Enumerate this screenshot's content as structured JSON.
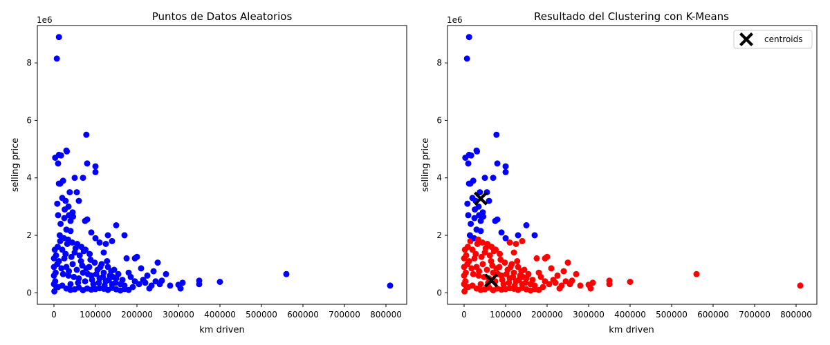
{
  "chart_data": [
    {
      "type": "scatter",
      "title": "Puntos de Datos Aleatorios",
      "xlabel": "km driven",
      "ylabel": "selling price",
      "y_offset_label": "1e6",
      "xlim": [
        -40000,
        850000
      ],
      "ylim": [
        -400000,
        9300000
      ],
      "xticks": [
        0,
        100000,
        200000,
        300000,
        400000,
        500000,
        600000,
        700000,
        800000
      ],
      "xtick_labels": [
        "0",
        "100000",
        "200000",
        "300000",
        "400000",
        "500000",
        "600000",
        "700000",
        "800000"
      ],
      "yticks": [
        0,
        2000000,
        4000000,
        6000000,
        8000000
      ],
      "ytick_labels": [
        "0",
        "2",
        "4",
        "6",
        "8"
      ],
      "series": [
        {
          "name": "points",
          "color": "#0000ff",
          "points": [
            [
              12000,
              8900000
            ],
            [
              7000,
              8150000
            ],
            [
              78000,
              5500000
            ],
            [
              30000,
              4950000
            ],
            [
              31000,
              4920000
            ],
            [
              12000,
              4800000
            ],
            [
              17000,
              4780000
            ],
            [
              3000,
              4700000
            ],
            [
              80000,
              4500000
            ],
            [
              10000,
              4500000
            ],
            [
              100000,
              4400000
            ],
            [
              100000,
              4200000
            ],
            [
              22000,
              3900000
            ],
            [
              12000,
              3800000
            ],
            [
              50000,
              4000000
            ],
            [
              70000,
              4000000
            ],
            [
              15000,
              3800000
            ],
            [
              38000,
              3500000
            ],
            [
              55000,
              3500000
            ],
            [
              20000,
              3300000
            ],
            [
              28000,
              3200000
            ],
            [
              60000,
              3200000
            ],
            [
              8000,
              3100000
            ],
            [
              35000,
              3000000
            ],
            [
              45000,
              2800000
            ],
            [
              10000,
              2700000
            ],
            [
              25000,
              2600000
            ],
            [
              40000,
              2500000
            ],
            [
              80000,
              2550000
            ],
            [
              75000,
              2500000
            ],
            [
              150000,
              2350000
            ],
            [
              30000,
              2200000
            ],
            [
              40000,
              2150000
            ],
            [
              90000,
              2100000
            ],
            [
              100000,
              1900000
            ],
            [
              130000,
              2000000
            ],
            [
              170000,
              2000000
            ],
            [
              110000,
              1750000
            ],
            [
              140000,
              1800000
            ],
            [
              125000,
              1700000
            ],
            [
              120000,
              1400000
            ],
            [
              200000,
              1250000
            ],
            [
              195000,
              1200000
            ],
            [
              175000,
              1200000
            ],
            [
              250000,
              1050000
            ],
            [
              210000,
              850000
            ],
            [
              240000,
              750000
            ],
            [
              270000,
              650000
            ],
            [
              225000,
              600000
            ],
            [
              260000,
              420000
            ],
            [
              280000,
              250000
            ],
            [
              300000,
              280000
            ],
            [
              305000,
              150000
            ],
            [
              310000,
              350000
            ],
            [
              350000,
              420000
            ],
            [
              350000,
              300000
            ],
            [
              400000,
              380000
            ],
            [
              560000,
              650000
            ],
            [
              810000,
              250000
            ],
            [
              150000,
              500000
            ],
            [
              160000,
              300000
            ],
            [
              180000,
              700000
            ],
            [
              190000,
              200000
            ],
            [
              230000,
              150000
            ],
            [
              220000,
              350000
            ],
            [
              2000,
              1500000
            ],
            [
              5000,
              1300000
            ],
            [
              8000,
              1000000
            ],
            [
              4000,
              700000
            ],
            [
              3000,
              400000
            ],
            [
              6000,
              200000
            ],
            [
              9000,
              1600000
            ],
            [
              15000,
              1800000
            ],
            [
              20000,
              1500000
            ],
            [
              25000,
              1200000
            ],
            [
              30000,
              900000
            ],
            [
              35000,
              600000
            ],
            [
              40000,
              300000
            ],
            [
              45000,
              1000000
            ],
            [
              50000,
              1400000
            ],
            [
              55000,
              800000
            ],
            [
              60000,
              500000
            ],
            [
              65000,
              1100000
            ],
            [
              70000,
              700000
            ],
            [
              75000,
              400000
            ],
            [
              85000,
              900000
            ],
            [
              90000,
              600000
            ],
            [
              95000,
              300000
            ],
            [
              105000,
              800000
            ],
            [
              110000,
              500000
            ],
            [
              115000,
              1000000
            ],
            [
              120000,
              700000
            ],
            [
              125000,
              400000
            ],
            [
              130000,
              900000
            ],
            [
              135000,
              600000
            ],
            [
              140000,
              300000
            ],
            [
              145000,
              800000
            ],
            [
              155000,
              650000
            ],
            [
              165000,
              450000
            ],
            [
              170000,
              250000
            ],
            [
              185000,
              550000
            ],
            [
              195000,
              400000
            ],
            [
              205000,
              300000
            ],
            [
              215000,
              450000
            ],
            [
              235000,
              250000
            ],
            [
              245000,
              400000
            ],
            [
              255000,
              300000
            ],
            [
              12000,
              1100000
            ],
            [
              18000,
              850000
            ],
            [
              22000,
              650000
            ],
            [
              28000,
              1350000
            ],
            [
              32000,
              1700000
            ],
            [
              36000,
              750000
            ],
            [
              42000,
              1250000
            ],
            [
              48000,
              550000
            ],
            [
              52000,
              1550000
            ],
            [
              58000,
              350000
            ],
            [
              62000,
              1300000
            ],
            [
              68000,
              950000
            ],
            [
              72000,
              1450000
            ],
            [
              78000,
              850000
            ],
            [
              82000,
              650000
            ],
            [
              88000,
              1150000
            ],
            [
              92000,
              450000
            ],
            [
              98000,
              1050000
            ],
            [
              102000,
              650000
            ],
            [
              108000,
              350000
            ],
            [
              112000,
              900000
            ],
            [
              118000,
              550000
            ],
            [
              122000,
              250000
            ],
            [
              128000,
              1100000
            ],
            [
              132000,
              450000
            ],
            [
              138000,
              750000
            ],
            [
              142000,
              550000
            ],
            [
              148000,
              350000
            ],
            [
              10000,
              200000
            ],
            [
              20000,
              250000
            ],
            [
              30000,
              150000
            ],
            [
              40000,
              100000
            ],
            [
              50000,
              120000
            ],
            [
              60000,
              180000
            ],
            [
              70000,
              90000
            ],
            [
              80000,
              150000
            ],
            [
              90000,
              110000
            ],
            [
              100000,
              130000
            ],
            [
              110000,
              160000
            ],
            [
              120000,
              140000
            ],
            [
              130000,
              100000
            ],
            [
              140000,
              170000
            ],
            [
              150000,
              120000
            ],
            [
              160000,
              80000
            ],
            [
              170000,
              130000
            ],
            [
              180000,
              100000
            ],
            [
              0,
              300000
            ],
            [
              0,
              600000
            ],
            [
              0,
              900000
            ],
            [
              0,
              1200000
            ],
            [
              1000,
              50000
            ],
            [
              14000,
              2000000
            ],
            [
              24000,
              1900000
            ],
            [
              34000,
              1850000
            ],
            [
              44000,
              1750000
            ],
            [
              16000,
              2400000
            ],
            [
              26000,
              2900000
            ],
            [
              36000,
              2700000
            ],
            [
              46000,
              2650000
            ],
            [
              56000,
              1700000
            ],
            [
              66000,
              1600000
            ],
            [
              76000,
              1500000
            ],
            [
              86000,
              1350000
            ]
          ]
        }
      ]
    },
    {
      "type": "scatter",
      "title": "Resultado del Clustering con K-Means",
      "xlabel": "km driven",
      "ylabel": "selling price",
      "y_offset_label": "1e6",
      "legend_position": "top-right",
      "legend_label": "centroids",
      "xlim": [
        -40000,
        850000
      ],
      "ylim": [
        -400000,
        9300000
      ],
      "xticks": [
        0,
        100000,
        200000,
        300000,
        400000,
        500000,
        600000,
        700000,
        800000
      ],
      "xtick_labels": [
        "0",
        "100000",
        "200000",
        "300000",
        "400000",
        "500000",
        "600000",
        "700000",
        "800000"
      ],
      "yticks": [
        0,
        2000000,
        4000000,
        6000000,
        8000000
      ],
      "ytick_labels": [
        "0",
        "2",
        "4",
        "6",
        "8"
      ],
      "cluster_threshold": 1900000,
      "cluster_colors": {
        "high": "#0000ff",
        "low": "#ff0000"
      },
      "centroids": [
        [
          40000,
          3280000
        ],
        [
          65000,
          430000
        ]
      ],
      "centroid_color": "#000000"
    }
  ]
}
